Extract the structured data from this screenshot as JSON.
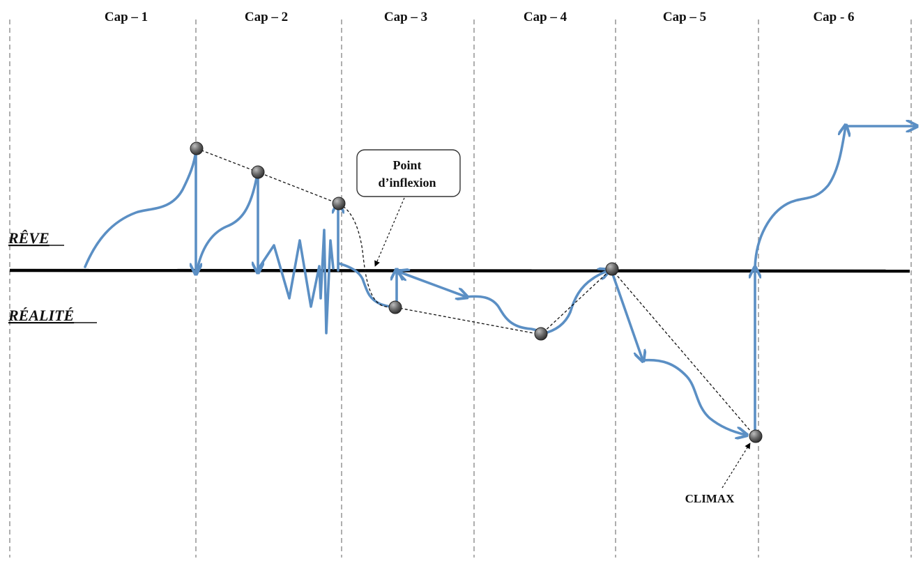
{
  "chapters": [
    "Cap – 1",
    "Cap – 2",
    "Cap – 3",
    "Cap – 4",
    "Cap – 5",
    "Cap - 6"
  ],
  "zones": {
    "upper": "RÊVE",
    "lower": "RÉALITÉ"
  },
  "annotations": {
    "inflection": [
      "Point",
      "d’inflexion"
    ],
    "climax": "CLIMAX"
  },
  "colors": {
    "curve": "#5b8fc4",
    "baseline": "#000000",
    "divider": "#9a9a9a",
    "marker": "#5f5f5f"
  }
}
